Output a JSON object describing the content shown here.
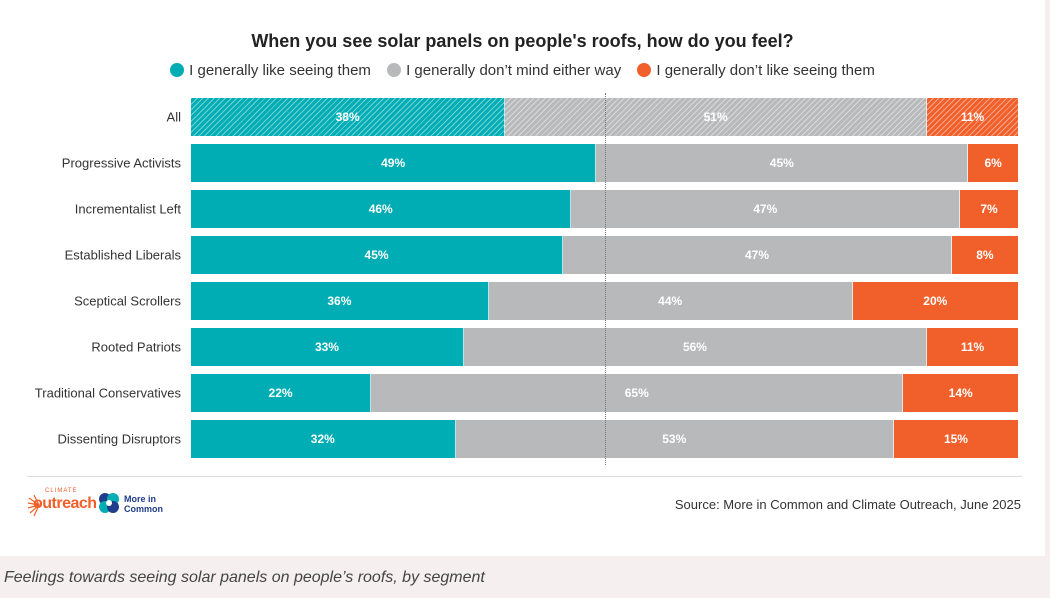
{
  "chart_data": {
    "type": "bar",
    "stacked": true,
    "orientation": "horizontal",
    "normalized": true,
    "title": "When you see solar panels on people's roofs, how do you feel?",
    "legend_position": "top",
    "categories": [
      "All",
      "Progressive Activists",
      "Incrementalist Left",
      "Established Liberals",
      "Sceptical Scrollers",
      "Rooted Patriots",
      "Traditional Conservatives",
      "Dissenting Disruptors"
    ],
    "series": [
      {
        "name": "I generally like seeing them",
        "color": "#00adb5",
        "values": [
          38,
          49,
          46,
          45,
          36,
          33,
          22,
          32
        ],
        "labels": [
          "38%",
          "49%",
          "46%",
          "45%",
          "36%",
          "33%",
          "22%",
          "32%"
        ]
      },
      {
        "name": "I generally don’t mind either way",
        "color": "#b8b9bb",
        "values": [
          51,
          45,
          47,
          47,
          44,
          56,
          65,
          53
        ],
        "labels": [
          "51%",
          "45%",
          "47%",
          "47%",
          "44%",
          "56%",
          "65%",
          "53%"
        ]
      },
      {
        "name": "I generally don’t like seeing them",
        "color": "#f15f2a",
        "values": [
          11,
          6,
          7,
          8,
          20,
          11,
          14,
          15
        ],
        "labels": [
          "11%",
          "6%",
          "7%",
          "8%",
          "20%",
          "11%",
          "14%",
          "15%"
        ]
      }
    ],
    "highlighted_row": "All",
    "reference_line": 50,
    "xlim": [
      0,
      100
    ]
  },
  "source": "Source: More in Common and Climate Outreach, June 2025",
  "logos": {
    "climate_outreach": {
      "small": "CLIMATE",
      "big": "outreach"
    },
    "more_in_common": {
      "line1": "More in",
      "line2": "Common"
    }
  },
  "caption": "Feelings towards seeing solar panels on people’s roofs, by segment"
}
